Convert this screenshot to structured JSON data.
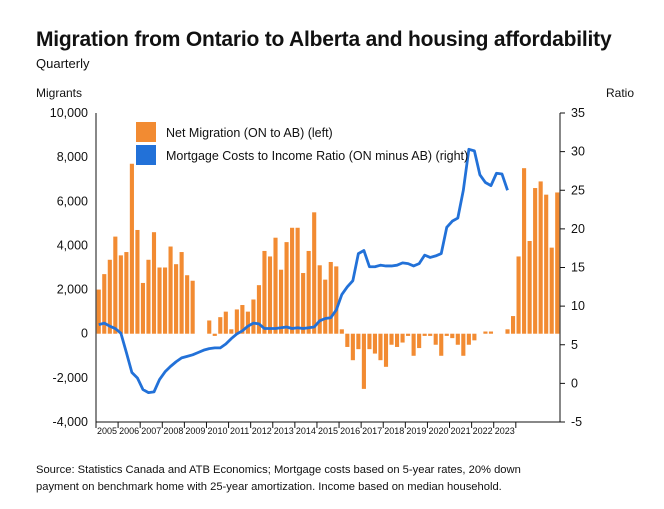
{
  "header": {
    "title": "Migration from Ontario to Alberta and housing affordability",
    "subtitle": "Quarterly",
    "left_axis_label": "Migrants",
    "right_axis_label": "Ratio"
  },
  "footer": {
    "source_line1": "Source: Statistics Canada and ATB Economics; Mortgage costs based on 5-year rates, 20% down",
    "source_line2": "payment on benchmark home with 25-year amortization. Income based on median household."
  },
  "colors": {
    "bars": "#F28B32",
    "line": "#2271D8"
  },
  "chart_data": {
    "type": "bar+line",
    "x_labels": [
      "2005",
      "2006",
      "2007",
      "2008",
      "2009",
      "2010",
      "2011",
      "2012",
      "2013",
      "2014",
      "2015",
      "2016",
      "2017",
      "2018",
      "2019",
      "2020",
      "2021",
      "2022",
      "2023"
    ],
    "quarters_per_year": 4,
    "y_left": {
      "label": "Migrants",
      "range": [
        -4000,
        10000
      ],
      "ticks": [
        -4000,
        -2000,
        0,
        2000,
        4000,
        6000,
        8000,
        10000
      ],
      "tick_labels": [
        "-4,000",
        "-2,000",
        "0",
        "2,000",
        "4,000",
        "6,000",
        "8,000",
        "10,000"
      ]
    },
    "y_right": {
      "label": "Ratio",
      "range": [
        -5,
        35
      ],
      "ticks": [
        -5,
        0,
        5,
        10,
        15,
        20,
        25,
        30,
        35
      ],
      "tick_labels": [
        "-5",
        "0",
        "5",
        "10",
        "15",
        "20",
        "25",
        "30",
        "35"
      ]
    },
    "legend": [
      "Net Migration (ON to AB) (left)",
      "Mortgage Costs to Income Ratio (ON minus AB) (right)"
    ],
    "series": [
      {
        "name": "Net Migration (ON to AB) (left)",
        "type": "bar",
        "axis": "left",
        "values": [
          2000,
          2700,
          3350,
          4400,
          3550,
          3700,
          7700,
          4700,
          2300,
          3350,
          4600,
          3000,
          3000,
          3950,
          3150,
          3700,
          2650,
          2400,
          0,
          0,
          600,
          -100,
          750,
          1000,
          200,
          1100,
          1300,
          1000,
          1550,
          2200,
          3750,
          3500,
          4350,
          2900,
          4150,
          4800,
          4800,
          2750,
          3750,
          5500,
          3100,
          2450,
          3250,
          3050,
          200,
          -600,
          -1200,
          -700,
          -2500,
          -700,
          -900,
          -1200,
          -1500,
          -500,
          -600,
          -400,
          -100,
          -1000,
          -650,
          -100,
          -100,
          -500,
          -1000,
          -100,
          -200,
          -500,
          -1000,
          -500,
          -300,
          0,
          100,
          100,
          0,
          0,
          200,
          800,
          3500,
          7500,
          4200,
          6600,
          6900,
          6300,
          3900,
          6400
        ]
      },
      {
        "name": "Mortgage Costs to Income Ratio (ON minus AB) (right)",
        "type": "line",
        "axis": "right",
        "values": [
          7.6,
          7.8,
          7.4,
          7.1,
          6.5,
          4,
          1.4,
          0.7,
          -0.8,
          -1.2,
          -1.1,
          0.5,
          1.5,
          2.2,
          2.8,
          3.3,
          3.5,
          3.7,
          4,
          4.3,
          4.5,
          4.6,
          4.6,
          5.1,
          5.8,
          6.4,
          6.8,
          7.4,
          7.8,
          7.7,
          7.1,
          7.1,
          7.1,
          7.2,
          7.3,
          7.1,
          7.2,
          7.1,
          7.2,
          7.3,
          8.1,
          8.4,
          8.5,
          9.5,
          11.5,
          12.5,
          13.3,
          16.8,
          17.2,
          15.1,
          15.1,
          15.3,
          15.2,
          15.2,
          15.3,
          15.6,
          15.5,
          15.2,
          15.5,
          16.6,
          16.3,
          16.5,
          16.8,
          20.2,
          21,
          21.4,
          25,
          30.3,
          30.1,
          27,
          26,
          25.6,
          27.2,
          27.1,
          25
        ]
      }
    ]
  }
}
